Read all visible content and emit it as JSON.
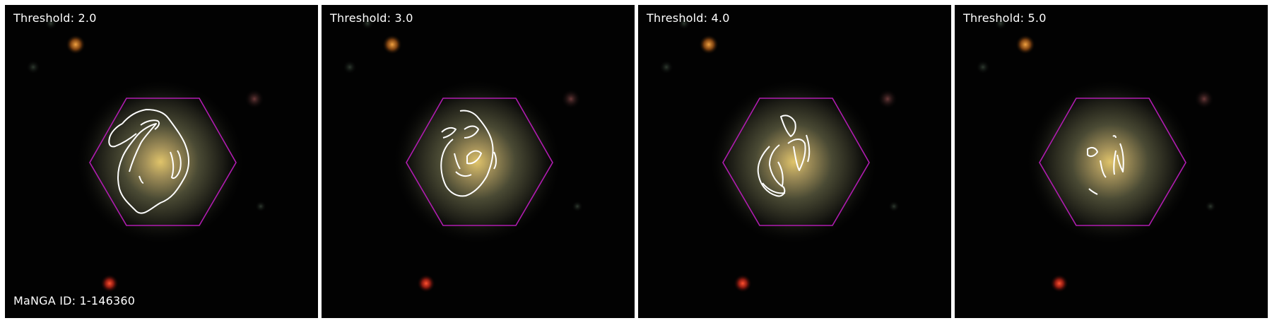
{
  "panels": [
    {
      "threshold_label": "Threshold: 2.0"
    },
    {
      "threshold_label": "Threshold: 3.0"
    },
    {
      "threshold_label": "Threshold: 4.0"
    },
    {
      "threshold_label": "Threshold: 5.0"
    }
  ],
  "galaxy_id_label": "MaNGA ID: 1-146360",
  "colors": {
    "background": "#020202",
    "hexagon": "#b01cb0",
    "contour": "#ffffff",
    "separator": "#ffffff"
  }
}
